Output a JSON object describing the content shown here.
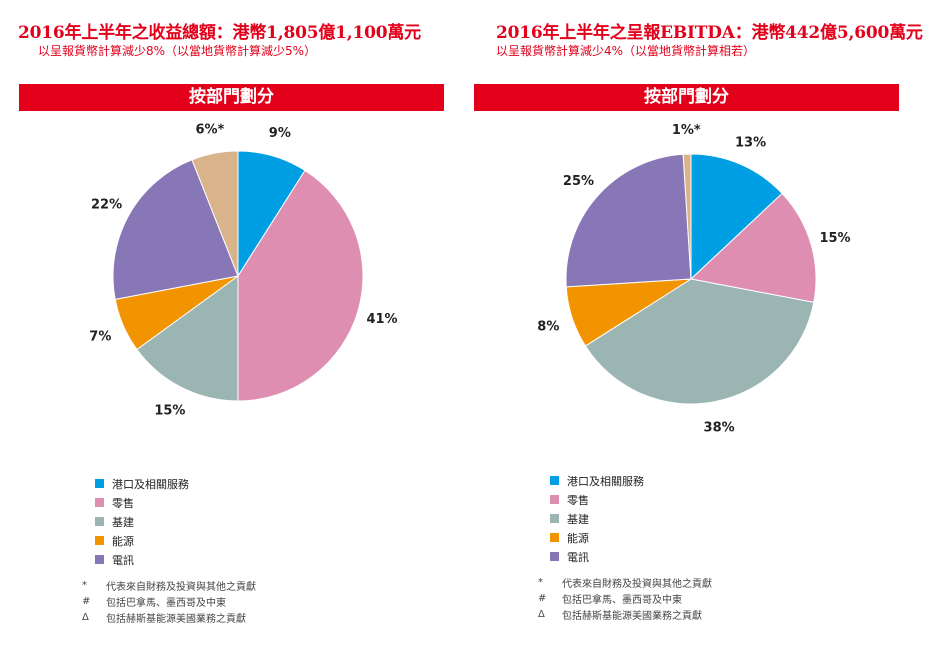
{
  "panels": [
    {
      "title": "2016年上半年之收益總額：港幣1,805億1,100萬元",
      "subtitle": "以呈報貨幣計算減少8%（以當地貨幣計算減少5%）",
      "banner": "按部門劃分"
    },
    {
      "title": "2016年上半年之呈報EBITDA：港幣442億5,600萬元",
      "subtitle": "以呈報貨幣計算減少4%（以當地貨幣計算相若）",
      "banner": "按部門劃分"
    }
  ],
  "chart_data": [
    {
      "type": "pie",
      "title": "2016年上半年之收益總額：港幣1,805億1,100萬元",
      "categories": [
        "港口及相關服務",
        "零售",
        "基建",
        "能源",
        "電訊",
        "代表來自財務及投資與其他之貢獻"
      ],
      "values": [
        9,
        41,
        15,
        7,
        22,
        6
      ],
      "labels": [
        "9%",
        "41%",
        "15%",
        "7%",
        "22%",
        "6%*"
      ],
      "colors": [
        "#009fe3",
        "#de8fb1",
        "#9bb5b2",
        "#f29400",
        "#8877b7",
        "#d9b48a"
      ]
    },
    {
      "type": "pie",
      "title": "2016年上半年之呈報EBITDA：港幣442億5,600萬元",
      "categories": [
        "港口及相關服務",
        "零售",
        "基建",
        "能源",
        "電訊",
        "代表來自財務及投資與其他之貢獻"
      ],
      "values": [
        13,
        15,
        38,
        8,
        25,
        1
      ],
      "labels": [
        "13%",
        "15%",
        "38%",
        "8%",
        "25%",
        "1%*"
      ],
      "colors": [
        "#009fe3",
        "#de8fb1",
        "#9bb5b2",
        "#f29400",
        "#8877b7",
        "#d9b48a"
      ]
    }
  ],
  "legend": [
    {
      "label": "港口及相關服務",
      "color": "#009fe3"
    },
    {
      "label": "零售",
      "color": "#de8fb1"
    },
    {
      "label": "基建",
      "color": "#9bb5b2"
    },
    {
      "label": "能源",
      "color": "#f29400"
    },
    {
      "label": "電訊",
      "color": "#8877b7"
    }
  ],
  "notes": [
    {
      "symbol": "*",
      "text": "代表來自財務及投資與其他之貢獻"
    },
    {
      "symbol": "#",
      "text": "包括巴拿馬、墨西哥及中東"
    },
    {
      "symbol": "Δ",
      "text": "包括赫斯基能源美國業務之貢獻"
    }
  ]
}
